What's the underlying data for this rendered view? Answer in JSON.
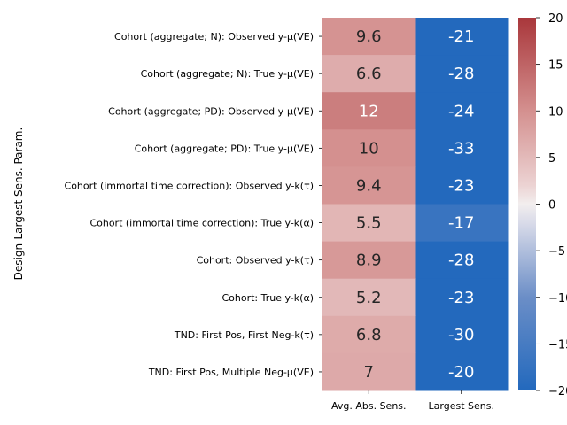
{
  "chart_data": {
    "type": "heatmap",
    "title": "",
    "xlabel": "",
    "ylabel": "Design-Largest Sens. Param.",
    "columns": [
      "Avg. Abs. Sens.",
      "Largest Sens."
    ],
    "rows": [
      "Cohort (aggregate; N): Observed y-μ(VE)",
      "Cohort (aggregate; N): True y-μ(VE)",
      "Cohort (aggregate; PD): Observed y-μ(VE)",
      "Cohort (aggregate; PD): True y-μ(VE)",
      "Cohort (immortal time correction): Observed y-k(τ)",
      "Cohort (immortal time correction): True y-k(α)",
      "Cohort: Observed y-k(τ)",
      "Cohort: True y-k(α)",
      "TND: First Pos, First Neg-k(τ)",
      "TND: First Pos, Multiple Neg-μ(VE)"
    ],
    "values": [
      [
        9.6,
        -21
      ],
      [
        6.6,
        -28
      ],
      [
        12,
        -24
      ],
      [
        10,
        -33
      ],
      [
        9.4,
        -23
      ],
      [
        5.5,
        -17
      ],
      [
        8.9,
        -28
      ],
      [
        5.2,
        -23
      ],
      [
        6.8,
        -30
      ],
      [
        7,
        -20
      ]
    ],
    "value_labels": [
      [
        "9.6",
        "-21"
      ],
      [
        "6.6",
        "-28"
      ],
      [
        "12",
        "-24"
      ],
      [
        "10",
        "-33"
      ],
      [
        "9.4",
        "-23"
      ],
      [
        "5.5",
        "-17"
      ],
      [
        "8.9",
        "-28"
      ],
      [
        "5.2",
        "-23"
      ],
      [
        "6.8",
        "-30"
      ],
      [
        "7",
        "-20"
      ]
    ],
    "colorbar": {
      "colormap": "vlag",
      "vmin": -20,
      "vmax": 20,
      "ticks": [
        -20,
        -15,
        -10,
        -5,
        0,
        5,
        10,
        15,
        20
      ],
      "tick_labels": [
        "−20",
        "−15",
        "−10",
        "−5",
        "0",
        "5",
        "10",
        "15",
        "20"
      ]
    }
  }
}
